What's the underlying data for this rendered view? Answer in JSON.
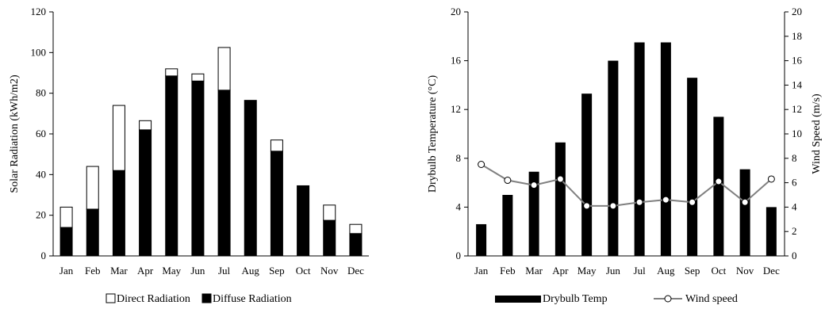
{
  "chart_data": [
    {
      "type": "bar",
      "stacked": true,
      "categories": [
        "Jan",
        "Feb",
        "Mar",
        "Apr",
        "May",
        "Jun",
        "Jul",
        "Aug",
        "Sep",
        "Oct",
        "Nov",
        "Dec"
      ],
      "ylabel": "Solar Radiation (kWh/m2)",
      "ylim": [
        0,
        120
      ],
      "yticks": [
        "0",
        "20",
        "40",
        "60",
        "80",
        "100",
        "120"
      ],
      "grid": false,
      "legend_position": "bottom",
      "series": [
        {
          "name": "Diffuse Radiation",
          "color": "#000000",
          "values": [
            14,
            23,
            42,
            62,
            88.5,
            86,
            81.5,
            76.5,
            51.5,
            34.5,
            17.5,
            11
          ]
        },
        {
          "name": "Direct Radiation",
          "color": "#ffffff",
          "values": [
            10,
            21,
            32,
            4.5,
            3.5,
            3.5,
            21,
            0,
            5.5,
            0,
            7.5,
            4.5
          ]
        }
      ]
    },
    {
      "type": "bar+line",
      "categories": [
        "Jan",
        "Feb",
        "Mar",
        "Apr",
        "May",
        "Jun",
        "Jul",
        "Aug",
        "Sep",
        "Oct",
        "Nov",
        "Dec"
      ],
      "ylabel": "Drybulb Temperature (°C)",
      "y2label": "Wind Speed (m/s)",
      "ylim": [
        0,
        20
      ],
      "yticks": [
        "0",
        "4",
        "8",
        "12",
        "16",
        "20"
      ],
      "y2lim": [
        0,
        20
      ],
      "y2ticks": [
        "0",
        "2",
        "4",
        "6",
        "8",
        "10",
        "12",
        "14",
        "16",
        "18",
        "20"
      ],
      "grid": false,
      "legend_position": "bottom",
      "series": [
        {
          "name": "Drybulb Temp",
          "type": "bar",
          "axis": "left",
          "color": "#000000",
          "values": [
            2.6,
            5.0,
            6.9,
            9.3,
            13.3,
            16.0,
            17.5,
            17.5,
            14.6,
            11.4,
            7.1,
            4.0
          ]
        },
        {
          "name": "Wind speed",
          "type": "line",
          "axis": "right",
          "color": "#808080",
          "values": [
            7.5,
            6.2,
            5.8,
            6.3,
            4.1,
            4.1,
            4.4,
            4.6,
            4.4,
            6.1,
            4.4,
            6.3
          ]
        }
      ]
    }
  ]
}
